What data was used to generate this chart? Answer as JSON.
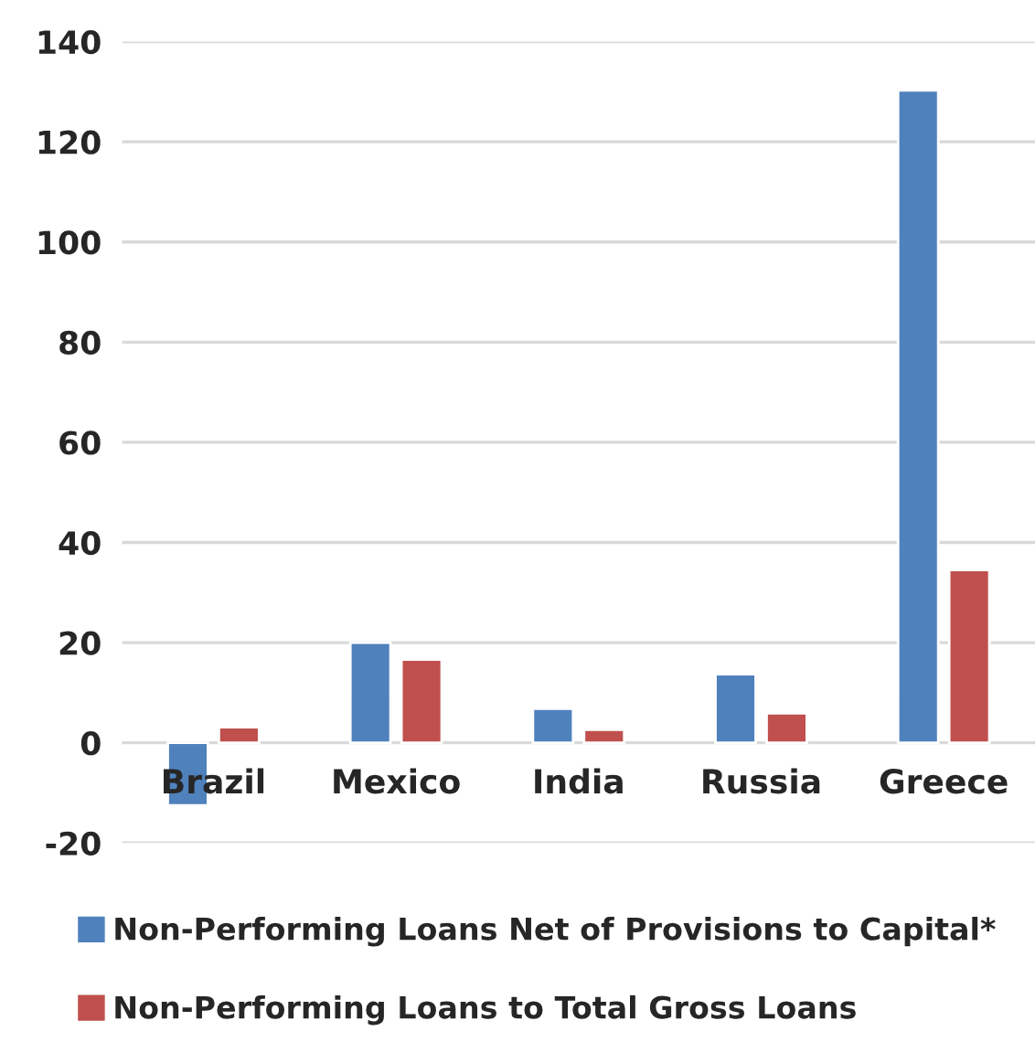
{
  "chart_data": {
    "type": "bar",
    "categories": [
      "Brazil",
      "Mexico",
      "India",
      "Russia",
      "Greece"
    ],
    "series": [
      {
        "name": "Non-Performing Loans Net of Provisions to Capital*",
        "color": "#4f81bd",
        "values": [
          -12.5,
          20,
          6.8,
          13.7,
          130.3
        ]
      },
      {
        "name": "Non-Performing Loans to Total Gross Loans",
        "color": "#c0504d",
        "values": [
          3.1,
          16.6,
          2.6,
          5.9,
          34.5
        ]
      }
    ],
    "ylim": [
      -20,
      140
    ],
    "yticks": [
      -20,
      0,
      20,
      40,
      60,
      80,
      100,
      120,
      140
    ],
    "grid": "y",
    "legend": "bottom"
  }
}
